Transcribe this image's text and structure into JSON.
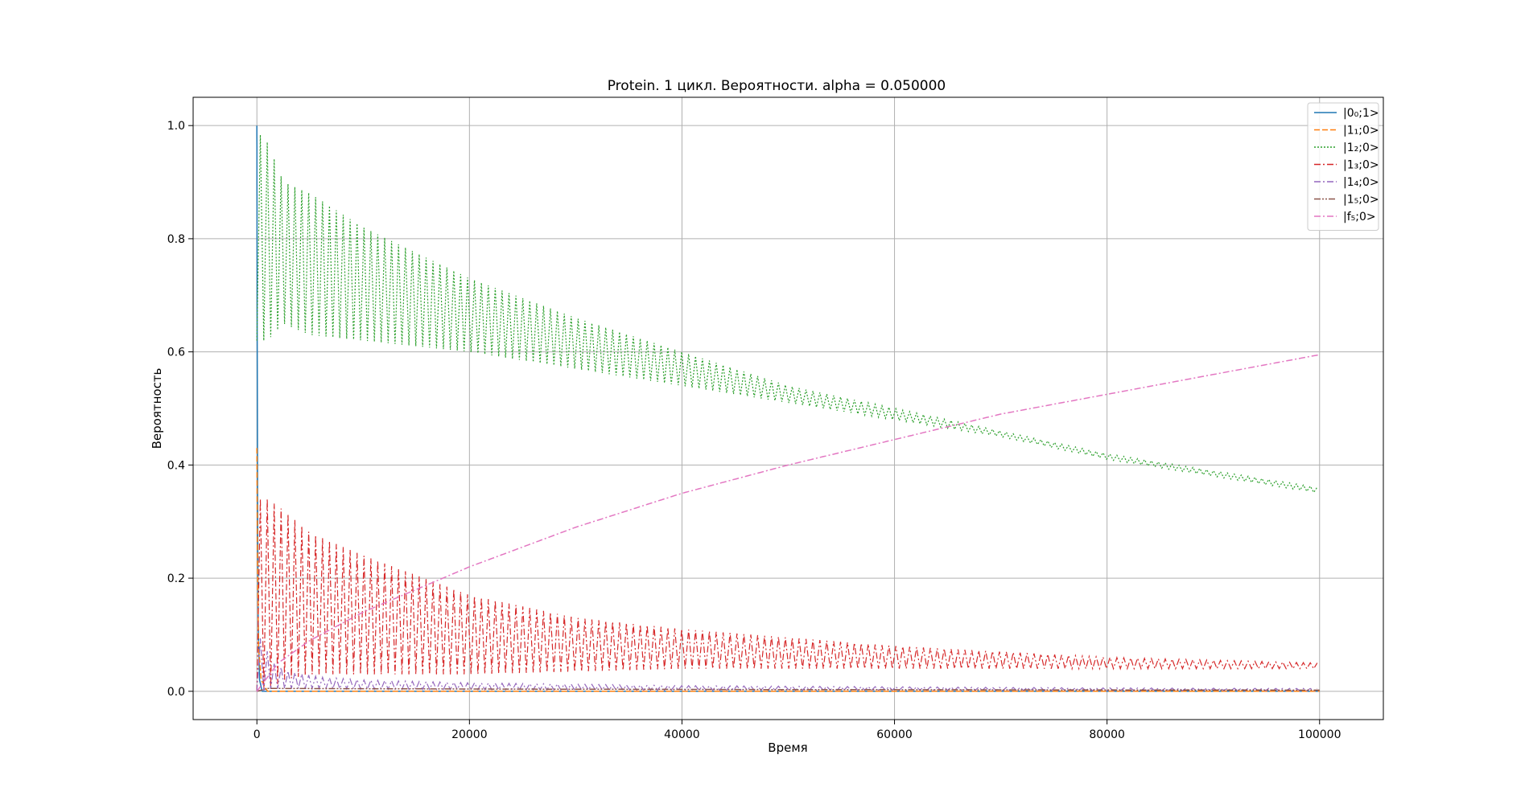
{
  "chart_data": {
    "type": "line",
    "title": "Protein. 1 цикл. Вероятности. alpha = 0.050000",
    "xlabel": "Время",
    "ylabel": "Вероятность",
    "xlim": [
      -6000,
      106000
    ],
    "ylim": [
      -0.05,
      1.05
    ],
    "xticks": [
      0,
      20000,
      40000,
      60000,
      80000,
      100000
    ],
    "xtick_labels": [
      "0",
      "20000",
      "40000",
      "60000",
      "80000",
      "100000"
    ],
    "yticks": [
      0.0,
      0.2,
      0.4,
      0.6,
      0.8,
      1.0
    ],
    "ytick_labels": [
      "0.0",
      "0.2",
      "0.4",
      "0.6",
      "0.8",
      "1.0"
    ],
    "grid": true,
    "legend_position": "top-right",
    "series": [
      {
        "name": "|0₀;1>",
        "color": "#1f77b4",
        "dash": "solid",
        "oscillating": false,
        "x": [
          0,
          20,
          60,
          120,
          250,
          500,
          100000
        ],
        "y": [
          1.0,
          0.7,
          0.35,
          0.12,
          0.02,
          0.0,
          0.0
        ]
      },
      {
        "name": "|1₁;0>",
        "color": "#ff7f0e",
        "dash": "dashed",
        "oscillating": false,
        "x": [
          0,
          50,
          150,
          400,
          1000,
          100000
        ],
        "y": [
          0.43,
          0.25,
          0.08,
          0.02,
          0.0,
          0.0
        ]
      },
      {
        "name": "|1₂;0>",
        "color": "#2ca02c",
        "dash": "dotted",
        "oscillating": true,
        "period": 650,
        "x": [
          0,
          1000,
          2500,
          5000,
          10000,
          20000,
          30000,
          40000,
          50000,
          60000,
          70000,
          80000,
          90000,
          100000
        ],
        "upper": [
          0.99,
          0.97,
          0.9,
          0.88,
          0.82,
          0.73,
          0.66,
          0.6,
          0.54,
          0.5,
          0.46,
          0.42,
          0.39,
          0.36
        ],
        "lower": [
          0.62,
          0.62,
          0.65,
          0.63,
          0.62,
          0.6,
          0.57,
          0.54,
          0.51,
          0.48,
          0.45,
          0.41,
          0.38,
          0.35
        ]
      },
      {
        "name": "|1₃;0>",
        "color": "#d62728",
        "dash": "dashdot",
        "oscillating": true,
        "period": 650,
        "x": [
          0,
          1000,
          2500,
          5000,
          10000,
          20000,
          30000,
          40000,
          50000,
          60000,
          70000,
          80000,
          90000,
          100000
        ],
        "upper": [
          0.34,
          0.34,
          0.32,
          0.28,
          0.24,
          0.17,
          0.13,
          0.11,
          0.095,
          0.08,
          0.07,
          0.06,
          0.055,
          0.05
        ],
        "lower": [
          0.0,
          0.0,
          0.02,
          0.03,
          0.03,
          0.03,
          0.035,
          0.04,
          0.04,
          0.04,
          0.04,
          0.04,
          0.04,
          0.04
        ]
      },
      {
        "name": "|1₄;0>",
        "color": "#9467bd",
        "dash": "dashdot",
        "oscillating": true,
        "period": 650,
        "x": [
          0,
          500,
          1500,
          3000,
          6000,
          10000,
          20000,
          40000,
          60000,
          80000,
          100000
        ],
        "upper": [
          0.1,
          0.09,
          0.05,
          0.035,
          0.025,
          0.02,
          0.015,
          0.01,
          0.008,
          0.006,
          0.005
        ],
        "lower": [
          0.0,
          0.0,
          0.005,
          0.005,
          0.005,
          0.004,
          0.003,
          0.002,
          0.002,
          0.001,
          0.001
        ]
      },
      {
        "name": "|1₅;0>",
        "color": "#8c564b",
        "dash": "dashdotdot",
        "oscillating": false,
        "x": [
          0,
          1000,
          20000,
          50000,
          100000
        ],
        "y": [
          0.0,
          0.005,
          0.004,
          0.003,
          0.002
        ]
      },
      {
        "name": "|f₅;0>",
        "color": "#e377c2",
        "dash": "dashdot",
        "oscillating": false,
        "x": [
          0,
          2000,
          5000,
          10000,
          15000,
          20000,
          30000,
          40000,
          50000,
          60000,
          70000,
          80000,
          90000,
          100000
        ],
        "y": [
          0.0,
          0.05,
          0.09,
          0.14,
          0.18,
          0.22,
          0.29,
          0.35,
          0.4,
          0.445,
          0.49,
          0.525,
          0.56,
          0.595
        ]
      }
    ]
  }
}
